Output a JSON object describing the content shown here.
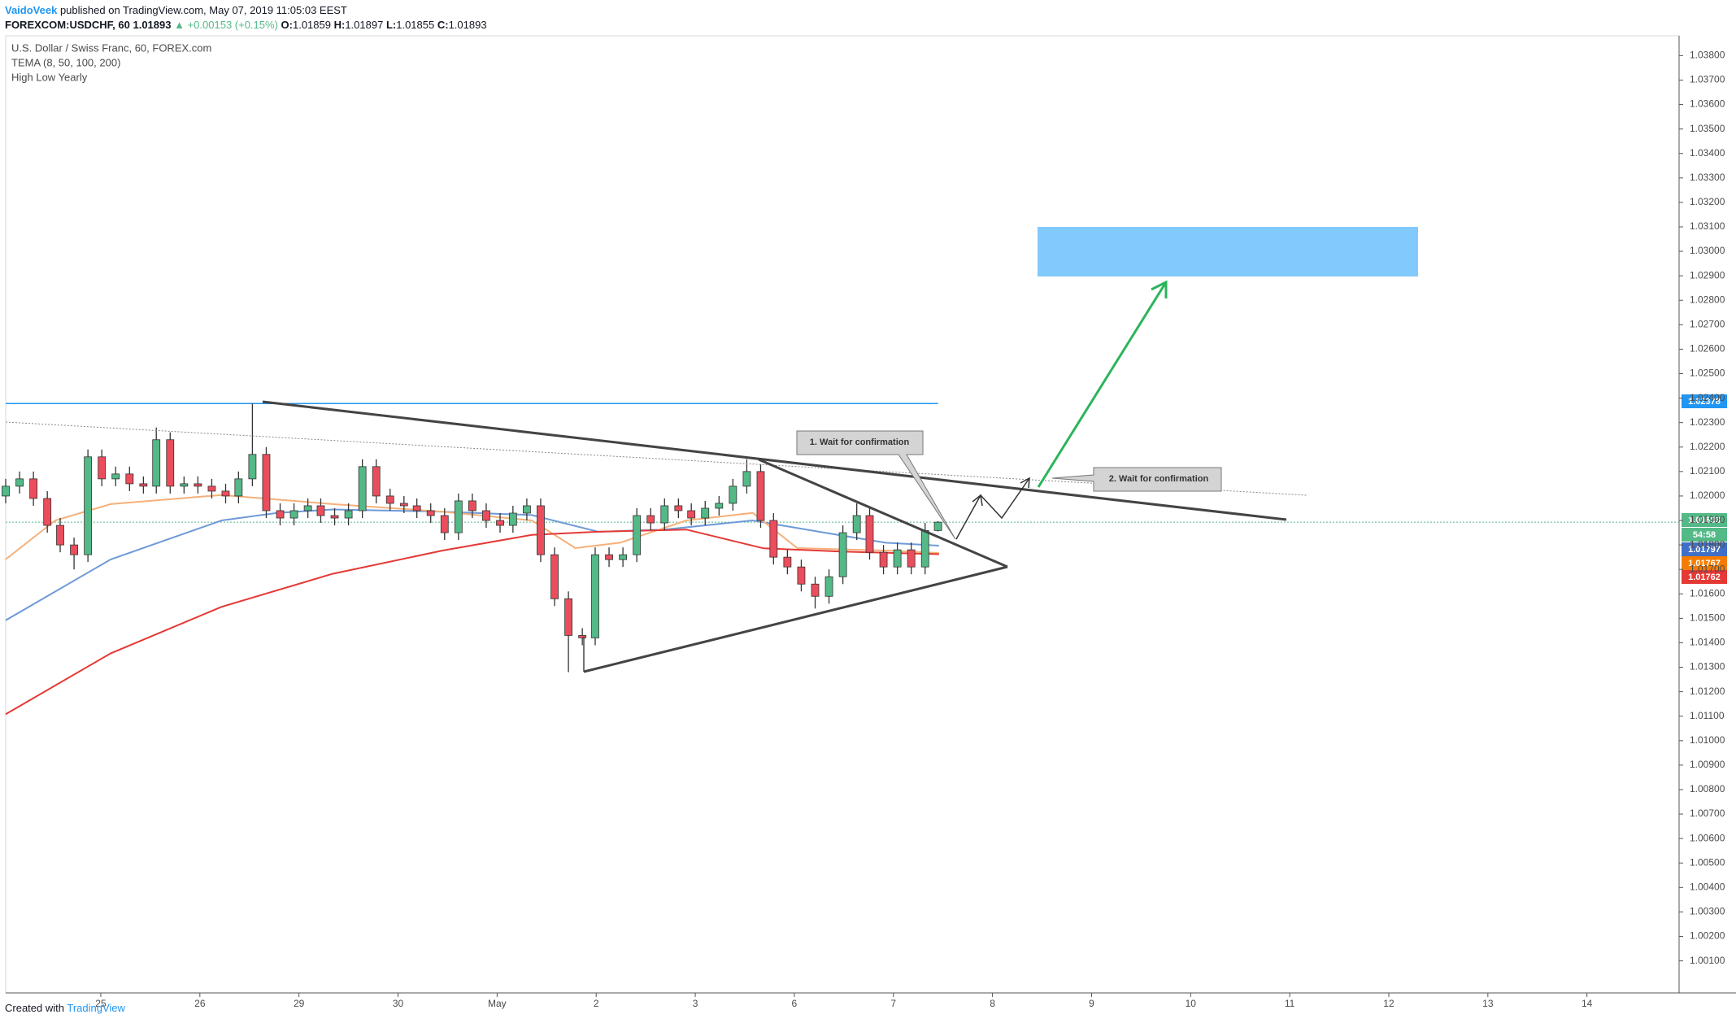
{
  "header": {
    "author": "VaidoVeek",
    "published": "published on TradingView.com, May 07, 2019 11:05:03 EEST",
    "symbol": "FOREXCOM:USDCHF, 60",
    "change": "▲ +0.00153 (+0.15%)",
    "ohlc_labels": [
      "O:",
      "H:",
      "L:",
      "C:"
    ]
  },
  "legend": [
    "U.S. Dollar / Swiss Franc, 60, FOREX.com",
    "TEMA (8, 50, 100, 200)",
    "High Low Yearly"
  ],
  "annotations": [
    "1. Wait for confirmation",
    "2. Wait for confirmation"
  ],
  "countdown": "54:58",
  "footer": {
    "created": "Created with",
    "brand": "TradingView"
  },
  "chart_data": {
    "type": "candlestick",
    "up_color": "#53b987",
    "down_color": "#eb4d5c",
    "x": [
      -0.96,
      -0.82,
      -0.68,
      -0.54,
      -0.41,
      -0.27,
      -0.13,
      0.01,
      0.15,
      0.29,
      0.43,
      0.56,
      0.7,
      0.84,
      0.98,
      1.12,
      1.26,
      1.39,
      1.53,
      1.67,
      1.81,
      1.95,
      2.09,
      2.22,
      2.36,
      2.5,
      2.64,
      2.78,
      2.92,
      3.06,
      3.19,
      3.33,
      3.47,
      3.61,
      3.75,
      3.89,
      4.03,
      4.16,
      4.3,
      4.44,
      4.58,
      4.72,
      4.86,
      4.99,
      5.13,
      5.27,
      5.41,
      5.55,
      5.69,
      5.83,
      5.96,
      6.1,
      6.24,
      6.38,
      6.52,
      6.66,
      6.79,
      6.93,
      7.07,
      7.21,
      7.35,
      7.49,
      7.63,
      7.76,
      7.9,
      8.04,
      8.18,
      8.32,
      8.45
    ],
    "open": [
      1.02,
      1.0204,
      1.0207,
      1.0199,
      1.0188,
      1.018,
      1.0176,
      1.0216,
      1.0207,
      1.0209,
      1.0205,
      1.0204,
      1.0223,
      1.0204,
      1.0205,
      1.0204,
      1.0202,
      1.02,
      1.0207,
      1.0217,
      1.0194,
      1.0191,
      1.0194,
      1.0196,
      1.0192,
      1.0191,
      1.0194,
      1.0212,
      1.02,
      1.0197,
      1.0196,
      1.0194,
      1.0192,
      1.0185,
      1.0198,
      1.0194,
      1.019,
      1.0188,
      1.0193,
      1.0196,
      1.0176,
      1.0158,
      1.0143,
      1.0142,
      1.0176,
      1.0174,
      1.0176,
      1.0192,
      1.0189,
      1.0196,
      1.0194,
      1.0191,
      1.0195,
      1.0197,
      1.0204,
      1.021,
      1.019,
      1.0175,
      1.0171,
      1.0164,
      1.0159,
      1.0167,
      1.0185,
      1.0192,
      1.0177,
      1.0171,
      1.0178,
      1.0171,
      1.01859
    ],
    "high": [
      1.0207,
      1.021,
      1.021,
      1.0202,
      1.0191,
      1.0183,
      1.0219,
      1.0219,
      1.0212,
      1.0212,
      1.0208,
      1.0228,
      1.0226,
      1.0208,
      1.0208,
      1.0207,
      1.0205,
      1.021,
      1.02378,
      1.022,
      1.0197,
      1.0197,
      1.0199,
      1.0199,
      1.0195,
      1.0197,
      1.0215,
      1.0215,
      1.0203,
      1.02,
      1.0199,
      1.0197,
      1.0195,
      1.0201,
      1.0201,
      1.0197,
      1.0193,
      1.0196,
      1.0199,
      1.0199,
      1.0179,
      1.0161,
      1.0146,
      1.0179,
      1.0179,
      1.0179,
      1.0195,
      1.0195,
      1.0199,
      1.0199,
      1.0197,
      1.0198,
      1.02,
      1.0207,
      1.0215,
      1.0213,
      1.0193,
      1.0178,
      1.0174,
      1.0167,
      1.017,
      1.0188,
      1.0197,
      1.0195,
      1.018,
      1.0181,
      1.0181,
      1.0189,
      1.01897
    ],
    "low": [
      1.0197,
      1.0201,
      1.0196,
      1.0185,
      1.0177,
      1.017,
      1.0173,
      1.0204,
      1.0204,
      1.0202,
      1.0201,
      1.0201,
      1.0201,
      1.0201,
      1.0201,
      1.0199,
      1.0197,
      1.0197,
      1.0204,
      1.0191,
      1.0188,
      1.0188,
      1.0191,
      1.0189,
      1.0188,
      1.0188,
      1.0191,
      1.0197,
      1.0194,
      1.0193,
      1.0191,
      1.0189,
      1.0182,
      1.0182,
      1.0191,
      1.0187,
      1.0185,
      1.0185,
      1.019,
      1.0173,
      1.0155,
      1.0128,
      1.0139,
      1.0139,
      1.0171,
      1.0171,
      1.0173,
      1.0186,
      1.0186,
      1.0191,
      1.0188,
      1.0188,
      1.0192,
      1.0194,
      1.0201,
      1.0187,
      1.0172,
      1.0168,
      1.0161,
      1.0154,
      1.0156,
      1.0164,
      1.0182,
      1.0174,
      1.0168,
      1.0168,
      1.0168,
      1.0168,
      1.01855
    ],
    "close": [
      1.0204,
      1.0207,
      1.0199,
      1.0188,
      1.018,
      1.0176,
      1.0216,
      1.0207,
      1.0209,
      1.0205,
      1.0204,
      1.0223,
      1.0204,
      1.0205,
      1.0204,
      1.0202,
      1.02,
      1.0207,
      1.0217,
      1.0194,
      1.0191,
      1.0194,
      1.0196,
      1.0192,
      1.0191,
      1.0194,
      1.0212,
      1.02,
      1.0197,
      1.0196,
      1.0194,
      1.0192,
      1.0185,
      1.0198,
      1.0194,
      1.019,
      1.0188,
      1.0193,
      1.0196,
      1.0176,
      1.0158,
      1.0143,
      1.0142,
      1.0176,
      1.0174,
      1.0176,
      1.0192,
      1.0189,
      1.0196,
      1.0194,
      1.0191,
      1.0195,
      1.0197,
      1.0204,
      1.021,
      1.019,
      1.0175,
      1.0171,
      1.0164,
      1.0159,
      1.0167,
      1.0185,
      1.0192,
      1.0177,
      1.0171,
      1.0178,
      1.0171,
      1.01859,
      1.01893
    ],
    "series": [
      {
        "color": "#6f9ad8",
        "x": [
          -0.96,
          0.1,
          1.22,
          1.78,
          2.34,
          3.45,
          4.35,
          5.02,
          5.69,
          6.58,
          7.25,
          7.92,
          8.46
        ],
        "values": [
          1.01492,
          1.01741,
          1.019,
          1.01931,
          1.01945,
          1.01936,
          1.01922,
          1.01854,
          1.01863,
          1.019,
          1.01854,
          1.01809,
          1.01797
        ]
      },
      {
        "color": "#f5b07a",
        "x": [
          -0.96,
          -0.46,
          0.1,
          1.22,
          2.34,
          3.45,
          4.35,
          4.79,
          5.24,
          5.91,
          6.58,
          7.03,
          7.92,
          8.46
        ],
        "values": [
          1.01741,
          1.019,
          1.01967,
          1.02004,
          1.01967,
          1.01936,
          1.019,
          1.01787,
          1.01809,
          1.019,
          1.01931,
          1.01787,
          1.01777,
          1.01767
        ]
      },
      {
        "color": "#e53935",
        "x": [
          -0.96,
          0.1,
          1.22,
          2.34,
          3.45,
          4.35,
          5.02,
          5.91,
          6.69,
          7.47,
          8.46
        ],
        "values": [
          1.01108,
          1.01357,
          1.01547,
          1.01682,
          1.01777,
          1.01841,
          1.01854,
          1.01863,
          1.01786,
          1.01773,
          1.01762
        ]
      }
    ],
    "high_low_yearly": 1.02378,
    "level_color": "#2196f3",
    "xlim": [
      -0.96,
      15.93
    ],
    "ylim": [
      0.99969,
      1.03881
    ],
    "xticks": [
      {
        "value": 0,
        "label": "25"
      },
      {
        "value": 1,
        "label": "26"
      },
      {
        "value": 2,
        "label": "29"
      },
      {
        "value": 3,
        "label": "30"
      },
      {
        "value": 4,
        "label": "May"
      },
      {
        "value": 5,
        "label": "2"
      },
      {
        "value": 6,
        "label": "3"
      },
      {
        "value": 7,
        "label": "6"
      },
      {
        "value": 8,
        "label": "7"
      },
      {
        "value": 9,
        "label": "8"
      },
      {
        "value": 10,
        "label": "9"
      },
      {
        "value": 11,
        "label": "10"
      },
      {
        "value": 12,
        "label": "11"
      },
      {
        "value": 13,
        "label": "12"
      },
      {
        "value": 14,
        "label": "13"
      },
      {
        "value": 15,
        "label": "14"
      }
    ],
    "yticks": [
      {
        "value": 1.001,
        "label": "1.00100"
      },
      {
        "value": 1.002,
        "label": "1.00200"
      },
      {
        "value": 1.003,
        "label": "1.00300"
      },
      {
        "value": 1.004,
        "label": "1.00400"
      },
      {
        "value": 1.005,
        "label": "1.00500"
      },
      {
        "value": 1.006,
        "label": "1.00600"
      },
      {
        "value": 1.007,
        "label": "1.00700"
      },
      {
        "value": 1.008,
        "label": "1.00800"
      },
      {
        "value": 1.009,
        "label": "1.00900"
      },
      {
        "value": 1.01,
        "label": "1.01000"
      },
      {
        "value": 1.011,
        "label": "1.01100"
      },
      {
        "value": 1.012,
        "label": "1.01200"
      },
      {
        "value": 1.013,
        "label": "1.01300"
      },
      {
        "value": 1.014,
        "label": "1.01400"
      },
      {
        "value": 1.015,
        "label": "1.01500"
      },
      {
        "value": 1.016,
        "label": "1.01600"
      },
      {
        "value": 1.017,
        "label": "1.01700"
      },
      {
        "value": 1.018,
        "label": "1.01800"
      },
      {
        "value": 1.019,
        "label": "1.01900"
      },
      {
        "value": 1.02,
        "label": "1.02000"
      },
      {
        "value": 1.021,
        "label": "1.02100"
      },
      {
        "value": 1.022,
        "label": "1.02200"
      },
      {
        "value": 1.023,
        "label": "1.02300"
      },
      {
        "value": 1.024,
        "label": "1.02400"
      },
      {
        "value": 1.025,
        "label": "1.02500"
      },
      {
        "value": 1.026,
        "label": "1.02600"
      },
      {
        "value": 1.027,
        "label": "1.02700"
      },
      {
        "value": 1.028,
        "label": "1.02800"
      },
      {
        "value": 1.029,
        "label": "1.02900"
      },
      {
        "value": 1.03,
        "label": "1.03000"
      },
      {
        "value": 1.031,
        "label": "1.03100"
      },
      {
        "value": 1.032,
        "label": "1.03200"
      },
      {
        "value": 1.033,
        "label": "1.03300"
      },
      {
        "value": 1.034,
        "label": "1.03400"
      },
      {
        "value": 1.035,
        "label": "1.03500"
      },
      {
        "value": 1.036,
        "label": "1.03600"
      },
      {
        "value": 1.037,
        "label": "1.03700"
      },
      {
        "value": 1.038,
        "label": "1.03800"
      }
    ]
  }
}
